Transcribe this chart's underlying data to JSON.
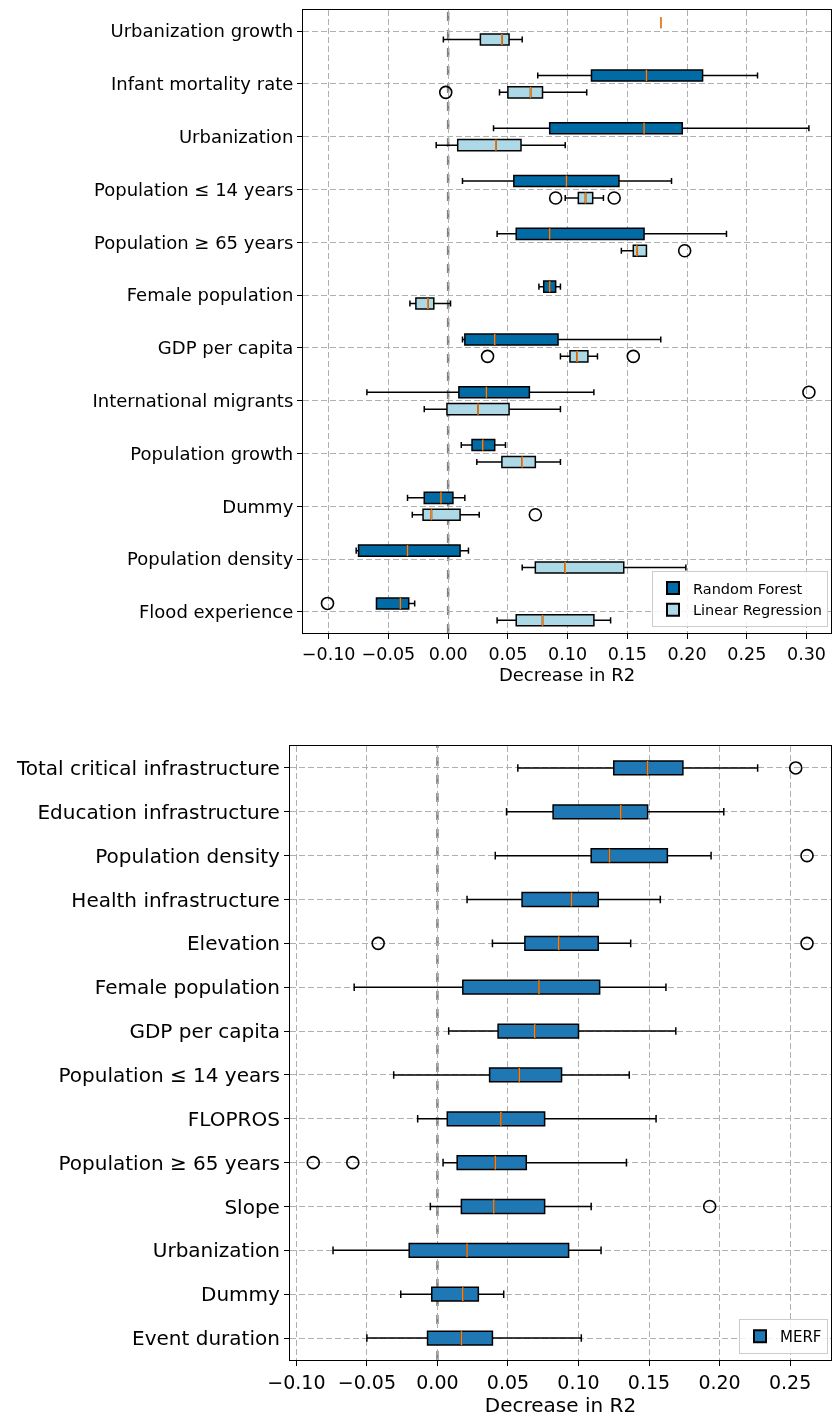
{
  "chart_data": [
    {
      "type": "box",
      "orientation": "horizontal",
      "xlabel": "Decrease in R2",
      "categories": [
        "Urbanization growth",
        "Infant mortality rate",
        "Urbanization",
        "Population ≤ 14 years",
        "Population ≥ 65 years",
        "Female population",
        "GDP per capita",
        "International migrants",
        "Population growth",
        "Dummy",
        "Population density",
        "Flood experience"
      ],
      "series": [
        {
          "name": "Random Forest",
          "color": "#006ba4",
          "boxes": [
            {
              "low": 0.178,
              "q1": 0.178,
              "median": 0.178,
              "q3": 0.178,
              "high": 0.178
            },
            {
              "low": 0.075,
              "q1": 0.12,
              "median": 0.166,
              "q3": 0.213,
              "high": 0.259
            },
            {
              "low": 0.038,
              "q1": 0.085,
              "median": 0.164,
              "q3": 0.196,
              "high": 0.302
            },
            {
              "low": 0.012,
              "q1": 0.055,
              "median": 0.099,
              "q3": 0.143,
              "high": 0.187
            },
            {
              "low": 0.041,
              "q1": 0.057,
              "median": 0.085,
              "q3": 0.164,
              "high": 0.233
            },
            {
              "low": 0.076,
              "q1": 0.08,
              "median": 0.085,
              "q3": 0.09,
              "high": 0.094
            },
            {
              "low": 0.012,
              "q1": 0.014,
              "median": 0.039,
              "q3": 0.092,
              "high": 0.178
            },
            {
              "low": -0.068,
              "q1": 0.009,
              "median": 0.032,
              "q3": 0.068,
              "high": 0.122,
              "outliers": [
                0.302
              ]
            },
            {
              "low": 0.011,
              "q1": 0.02,
              "median": 0.029,
              "q3": 0.039,
              "high": 0.048
            },
            {
              "low": -0.034,
              "q1": -0.02,
              "median": -0.006,
              "q3": 0.004,
              "high": 0.014
            },
            {
              "low": -0.077,
              "q1": -0.075,
              "median": -0.034,
              "q3": 0.01,
              "high": 0.017
            },
            {
              "low": -0.06,
              "q1": -0.06,
              "median": -0.04,
              "q3": -0.033,
              "high": -0.028,
              "outliers": [
                -0.101
              ]
            }
          ]
        },
        {
          "name": "Linear Regression",
          "color": "#add8e6",
          "boxes": [
            {
              "low": -0.004,
              "q1": 0.027,
              "median": 0.045,
              "q3": 0.051,
              "high": 0.062
            },
            {
              "low": 0.043,
              "q1": 0.05,
              "median": 0.069,
              "q3": 0.079,
              "high": 0.116,
              "outliers": [
                -0.002
              ]
            },
            {
              "low": -0.01,
              "q1": 0.008,
              "median": 0.04,
              "q3": 0.061,
              "high": 0.098
            },
            {
              "low": 0.098,
              "q1": 0.109,
              "median": 0.115,
              "q3": 0.121,
              "high": 0.13,
              "outliers": [
                0.09,
                0.139
              ]
            },
            {
              "low": 0.145,
              "q1": 0.155,
              "median": 0.158,
              "q3": 0.166,
              "high": 0.166,
              "outliers": [
                0.198
              ]
            },
            {
              "low": -0.032,
              "q1": -0.027,
              "median": -0.017,
              "q3": -0.012,
              "high": 0.002
            },
            {
              "low": 0.094,
              "q1": 0.102,
              "median": 0.108,
              "q3": 0.117,
              "high": 0.125,
              "outliers": [
                0.033,
                0.155
              ]
            },
            {
              "low": -0.02,
              "q1": -0.001,
              "median": 0.025,
              "q3": 0.051,
              "high": 0.094
            },
            {
              "low": 0.024,
              "q1": 0.045,
              "median": 0.062,
              "q3": 0.073,
              "high": 0.094
            },
            {
              "low": -0.03,
              "q1": -0.021,
              "median": -0.014,
              "q3": 0.01,
              "high": 0.026,
              "outliers": [
                0.073
              ]
            },
            {
              "low": 0.062,
              "q1": 0.073,
              "median": 0.098,
              "q3": 0.147,
              "high": 0.199
            },
            {
              "low": 0.041,
              "q1": 0.057,
              "median": 0.079,
              "q3": 0.122,
              "high": 0.136
            }
          ]
        }
      ],
      "xlim": [
        -0.1215,
        0.3205
      ],
      "xticks": [
        {
          "value": -0.1,
          "label": "−0.10"
        },
        {
          "value": -0.05,
          "label": "−0.05"
        },
        {
          "value": 0,
          "label": "0.00"
        },
        0.05,
        {
          "value": 0.1,
          "label": "0.10"
        },
        0.15,
        {
          "value": 0.2,
          "label": "0.20"
        },
        0.25,
        {
          "value": 0.3,
          "label": "0.30"
        }
      ],
      "ref_lines": [
        {
          "axis": "x",
          "value": 0,
          "color": "#808080",
          "line_style": "dashed"
        }
      ],
      "grid": true,
      "legend": "bottom right"
    },
    {
      "type": "box",
      "orientation": "horizontal",
      "xlabel": "Decrease in R2",
      "categories": [
        "Total critical infrastructure",
        "Education infrastructure",
        "Population density",
        "Health infrastructure",
        "Elevation",
        "Female population",
        "GDP per capita",
        "Population ≤ 14 years",
        "FLOPROS",
        "Population ≥ 65 years",
        "Slope",
        "Urbanization",
        "Dummy",
        "Event duration"
      ],
      "series": [
        {
          "name": "MERF",
          "color": "#1f77b4",
          "boxes": [
            {
              "low": 0.057,
              "q1": 0.125,
              "median": 0.149,
              "q3": 0.174,
              "high": 0.227,
              "outliers": [
                0.254
              ]
            },
            {
              "low": 0.049,
              "q1": 0.082,
              "median": 0.13,
              "q3": 0.149,
              "high": 0.203
            },
            {
              "low": 0.041,
              "q1": 0.109,
              "median": 0.122,
              "q3": 0.163,
              "high": 0.194,
              "outliers": [
                0.262
              ]
            },
            {
              "low": 0.021,
              "q1": 0.06,
              "median": 0.095,
              "q3": 0.114,
              "high": 0.158
            },
            {
              "low": 0.039,
              "q1": 0.062,
              "median": 0.086,
              "q3": 0.114,
              "high": 0.137,
              "outliers": [
                -0.042,
                0.262
              ]
            },
            {
              "low": -0.059,
              "q1": 0.018,
              "median": 0.072,
              "q3": 0.115,
              "high": 0.162
            },
            {
              "low": 0.008,
              "q1": 0.043,
              "median": 0.069,
              "q3": 0.1,
              "high": 0.169
            },
            {
              "low": -0.031,
              "q1": 0.037,
              "median": 0.058,
              "q3": 0.088,
              "high": 0.136
            },
            {
              "low": -0.014,
              "q1": 0.007,
              "median": 0.045,
              "q3": 0.076,
              "high": 0.155
            },
            {
              "low": 0.004,
              "q1": 0.014,
              "median": 0.041,
              "q3": 0.063,
              "high": 0.134,
              "outliers": [
                -0.088,
                -0.06
              ]
            },
            {
              "low": -0.005,
              "q1": 0.017,
              "median": 0.04,
              "q3": 0.076,
              "high": 0.109,
              "outliers": [
                0.193
              ]
            },
            {
              "low": -0.074,
              "q1": -0.02,
              "median": 0.021,
              "q3": 0.093,
              "high": 0.116
            },
            {
              "low": -0.026,
              "q1": -0.004,
              "median": 0.018,
              "q3": 0.029,
              "high": 0.047
            },
            {
              "low": -0.05,
              "q1": -0.007,
              "median": 0.017,
              "q3": 0.039,
              "high": 0.102
            }
          ]
        }
      ],
      "xlim": [
        -0.1045,
        0.279
      ],
      "xticks": [
        {
          "value": -0.1,
          "label": "−0.10"
        },
        {
          "value": -0.05,
          "label": "−0.05"
        },
        {
          "value": 0,
          "label": "0.00"
        },
        0.05,
        {
          "value": 0.1,
          "label": "0.10"
        },
        0.15,
        {
          "value": 0.2,
          "label": "0.20"
        },
        0.25
      ],
      "ref_lines": [
        {
          "axis": "x",
          "value": 0,
          "color": "#808080",
          "line_style": "dashed"
        }
      ],
      "grid": true,
      "legend": "bottom right"
    }
  ]
}
